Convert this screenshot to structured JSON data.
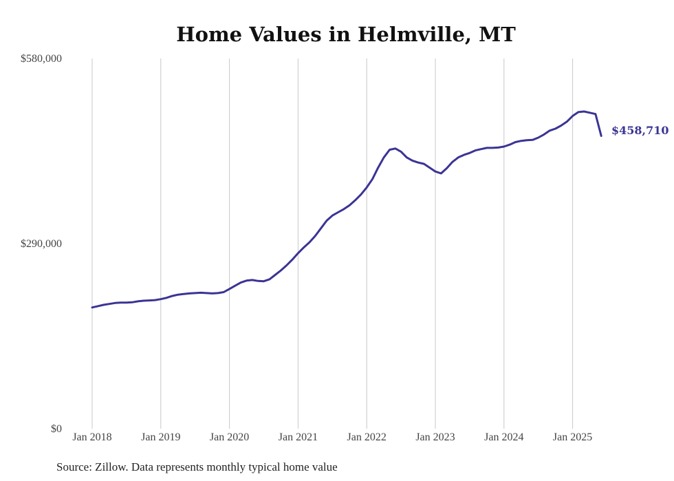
{
  "chart_data": {
    "type": "line",
    "title": "Home Values in Helmville, MT",
    "xlabel": "",
    "ylabel": "",
    "ylim": [
      0,
      580000
    ],
    "y_ticks": [
      "$0",
      "$290,000",
      "$580,000"
    ],
    "y_tick_values": [
      0,
      290000,
      580000
    ],
    "x_ticks": [
      "Jan 2018",
      "Jan 2019",
      "Jan 2020",
      "Jan 2021",
      "Jan 2022",
      "Jan 2023",
      "Jan 2024",
      "Jan 2025"
    ],
    "x_tick_dates": [
      "2018-01",
      "2019-01",
      "2020-01",
      "2021-01",
      "2022-01",
      "2023-01",
      "2024-01",
      "2025-01"
    ],
    "grid": "vertical",
    "end_label": "$458,710",
    "series": [
      {
        "color": "#3b3494",
        "x": [
          "2018-01",
          "2018-02",
          "2018-03",
          "2018-04",
          "2018-05",
          "2018-06",
          "2018-07",
          "2018-08",
          "2018-09",
          "2018-10",
          "2018-11",
          "2018-12",
          "2019-01",
          "2019-02",
          "2019-03",
          "2019-04",
          "2019-05",
          "2019-06",
          "2019-07",
          "2019-08",
          "2019-09",
          "2019-10",
          "2019-11",
          "2019-12",
          "2020-01",
          "2020-02",
          "2020-03",
          "2020-04",
          "2020-05",
          "2020-06",
          "2020-07",
          "2020-08",
          "2020-09",
          "2020-10",
          "2020-11",
          "2020-12",
          "2021-01",
          "2021-02",
          "2021-03",
          "2021-04",
          "2021-05",
          "2021-06",
          "2021-07",
          "2021-08",
          "2021-09",
          "2021-10",
          "2021-11",
          "2021-12",
          "2022-01",
          "2022-02",
          "2022-03",
          "2022-04",
          "2022-05",
          "2022-06",
          "2022-07",
          "2022-08",
          "2022-09",
          "2022-10",
          "2022-11",
          "2022-12",
          "2023-01",
          "2023-02",
          "2023-03",
          "2023-04",
          "2023-05",
          "2023-06",
          "2023-07",
          "2023-08",
          "2023-09",
          "2023-10",
          "2023-11",
          "2023-12",
          "2024-01",
          "2024-02",
          "2024-03",
          "2024-04",
          "2024-05",
          "2024-06",
          "2024-07",
          "2024-08",
          "2024-09",
          "2024-10",
          "2024-11",
          "2024-12",
          "2025-01",
          "2025-02",
          "2025-03",
          "2025-04",
          "2025-05",
          "2025-06"
        ],
        "y": [
          190000,
          192000,
          194000,
          195500,
          197000,
          197500,
          197500,
          198000,
          199500,
          200500,
          201000,
          201500,
          203000,
          205000,
          208000,
          210000,
          211000,
          212000,
          212500,
          213000,
          212500,
          212000,
          212500,
          214000,
          219000,
          224000,
          229000,
          232000,
          233000,
          231500,
          231000,
          234000,
          241000,
          248000,
          256000,
          265000,
          275000,
          284000,
          292000,
          302000,
          314000,
          326000,
          334000,
          339000,
          344000,
          350000,
          358000,
          367000,
          378000,
          391000,
          409000,
          425000,
          437000,
          439000,
          434000,
          425000,
          420000,
          417000,
          415000,
          409000,
          403000,
          400000,
          408000,
          418000,
          425000,
          429000,
          432000,
          436000,
          438000,
          440000,
          440000,
          440500,
          442000,
          445000,
          449000,
          451000,
          452000,
          452500,
          456000,
          461000,
          467000,
          470000,
          475000,
          481000,
          490000,
          496000,
          497000,
          495000,
          493000,
          458710
        ]
      }
    ]
  },
  "footer": {
    "source": "Source: Zillow. Data represents monthly typical home value"
  }
}
